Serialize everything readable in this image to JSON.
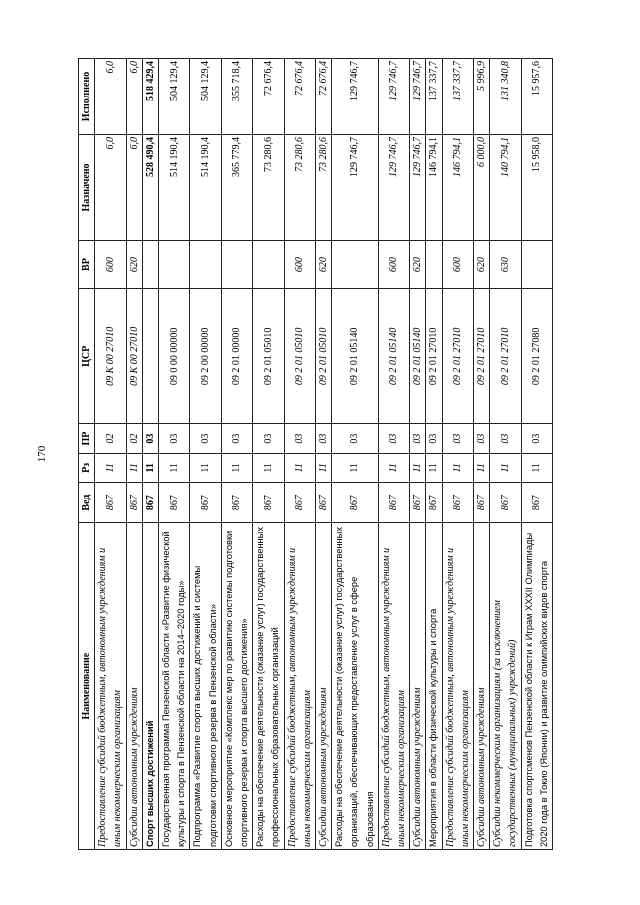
{
  "page_number": "170",
  "headers": [
    "Наименование",
    "Вед",
    "Рз",
    "ПР",
    "ЦСР",
    "ВР",
    "Назначено",
    "Исполнено"
  ],
  "rows": [
    {
      "style": "italic",
      "cells": [
        "Предоставление субсидий бюджетным, автономным учреждениям и иным некоммерческим организациям",
        "867",
        "11",
        "02",
        "09 К 00 27010",
        "600",
        "6,0",
        "6,0"
      ]
    },
    {
      "style": "italic",
      "cells": [
        "Субсидии автономным учреждениям",
        "867",
        "11",
        "02",
        "09 К 00 27010",
        "620",
        "6,0",
        "6,0"
      ]
    },
    {
      "style": "bold",
      "cells": [
        "Спорт высших достижений",
        "867",
        "11",
        "03",
        "",
        "",
        "528 490,4",
        "518 429,4"
      ]
    },
    {
      "style": "normal",
      "cells": [
        "Государственная программа Пензенской области «Развитие физической культуры и спорта в Пензенской области на 2014–2020 годы»",
        "867",
        "11",
        "03",
        "09 0 00 00000",
        "",
        "514 190,4",
        "504 129,4"
      ]
    },
    {
      "style": "normal",
      "cells": [
        "Подпрограмма «Развитие спорта высших достижений и системы подготовки спортивного резерва в Пензенской области»",
        "867",
        "11",
        "03",
        "09 2 00 00000",
        "",
        "514 190,4",
        "504 129,4"
      ]
    },
    {
      "style": "normal",
      "cells": [
        "Основное мероприятие «Комплекс мер по развитию системы подготовки спортивного резерва и спорта высшего достижения»",
        "867",
        "11",
        "03",
        "09 2 01 00000",
        "",
        "365 779,4",
        "355 718,4"
      ]
    },
    {
      "style": "normal",
      "cells": [
        "Расходы на обеспечение деятельности (оказание услуг) государственных профессиональных образовательных организаций",
        "867",
        "11",
        "03",
        "09 2 01 05010",
        "",
        "73 280,6",
        "72 676,4"
      ]
    },
    {
      "style": "italic",
      "cells": [
        "Предоставление субсидий бюджетным, автономным учреждениям и иным некоммерческим организациям",
        "867",
        "11",
        "03",
        "09 2 01 05010",
        "600",
        "73 280,6",
        "72 676,4"
      ]
    },
    {
      "style": "italic",
      "cells": [
        "Субсидии автономным учреждениям",
        "867",
        "11",
        "03",
        "09 2 01 05010",
        "620",
        "73 280,6",
        "72 676,4"
      ]
    },
    {
      "style": "normal",
      "cells": [
        "Расходы на обеспечение деятельности (оказание услуг) государственных организаций, обеспечивающих предоставление услуг в сфере образования",
        "867",
        "11",
        "03",
        "09 2 01 05140",
        "",
        "129 746,7",
        "129 746,7"
      ]
    },
    {
      "style": "italic",
      "cells": [
        "Предоставление субсидий бюджетным, автономным учреждениям и иным некоммерческим организациям",
        "867",
        "11",
        "03",
        "09 2 01 05140",
        "600",
        "129 746,7",
        "129 746,7"
      ]
    },
    {
      "style": "italic",
      "cells": [
        "Субсидии автономным учреждениям",
        "867",
        "11",
        "03",
        "09 2 01 05140",
        "620",
        "129 746,7",
        "129 746,7"
      ]
    },
    {
      "style": "normal",
      "cells": [
        "Мероприятия в области физической культуры и спорта",
        "867",
        "11",
        "03",
        "09 2 01 27010",
        "",
        "146 794,1",
        "137 337,7"
      ]
    },
    {
      "style": "italic",
      "cells": [
        "Предоставление субсидий бюджетным, автономным учреждениям и иным некоммерческим организациям",
        "867",
        "11",
        "03",
        "09 2 01 27010",
        "600",
        "146 794,1",
        "137 337,7"
      ]
    },
    {
      "style": "italic",
      "cells": [
        "Субсидии автономным учреждениям",
        "867",
        "11",
        "03",
        "09 2 01 27010",
        "620",
        "6 000,0",
        "5 996,9"
      ]
    },
    {
      "style": "italic",
      "cells": [
        "Субсидии некоммерческим организациям (за исключением государственных (муниципальных) учреждений)",
        "867",
        "11",
        "03",
        "09 2 01 27010",
        "630",
        "140 794,1",
        "131 340,8"
      ]
    },
    {
      "style": "normal",
      "cells": [
        "Подготовка спортсменов Пензенской области к Играм XXXII Олимпиады 2020 года в Токио (Японии) и развитие олимпийских видов спорта",
        "867",
        "11",
        "03",
        "09 2 01 27080",
        "",
        "15 958,0",
        "15 957,6"
      ]
    }
  ]
}
